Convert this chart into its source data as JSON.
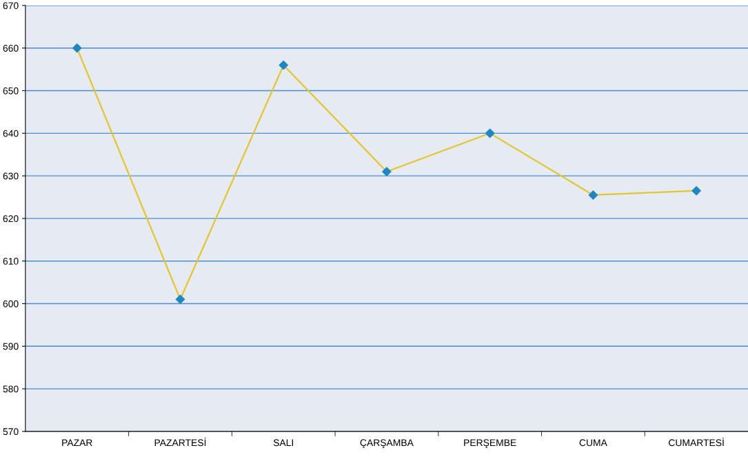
{
  "chart_data": {
    "type": "line",
    "categories": [
      "PAZAR",
      "PAZARTESİ",
      "SALI",
      "ÇARŞAMBA",
      "PERŞEMBE",
      "CUMA",
      "CUMARTESİ"
    ],
    "series": [
      {
        "color": "#e3c62e",
        "colors": [
          "#1f86c4",
          "#1f86c4",
          "#1f86c4",
          "#1f86c4",
          "#1f86c4",
          "#1f86c4",
          "#1f86c4"
        ],
        "values": [
          660,
          601,
          656,
          631,
          640,
          625.5,
          626.5
        ]
      }
    ],
    "ylim": [
      570,
      670
    ],
    "yticks": [
      570,
      580,
      590,
      600,
      610,
      620,
      630,
      640,
      650,
      660,
      670
    ],
    "grid": "y",
    "marker": "diamond",
    "line_style": "solid",
    "legend": false
  }
}
